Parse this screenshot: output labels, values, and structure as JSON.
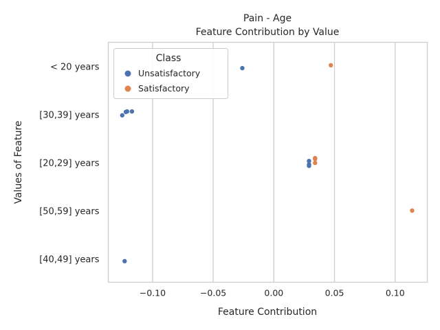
{
  "chart_data": {
    "type": "scatter",
    "title": "Pain - Age",
    "subtitle": "Feature Contribution by Value",
    "xlabel": "Feature Contribution",
    "ylabel": "Values of Feature",
    "xlim": [
      -0.1365,
      0.1265
    ],
    "x_ticks": [
      -0.1,
      -0.05,
      0.0,
      0.05,
      0.1
    ],
    "x_tick_labels": [
      "−0.10",
      "−0.05",
      "0.00",
      "0.05",
      "0.10"
    ],
    "categories": [
      "< 20 years",
      "[30,39] years",
      "[20,29] years",
      "[50,59] years",
      "[40,49] years"
    ],
    "grid": "x-only",
    "legend": {
      "title": "Class",
      "placement": "top-left",
      "entries": [
        {
          "name": "Unsatisfactory",
          "color": "#4c72b0"
        },
        {
          "name": "Satisfactory",
          "color": "#dd8452"
        }
      ]
    },
    "series": [
      {
        "name": "Unsatisfactory",
        "color": "#4c72b0",
        "points": [
          {
            "category": "< 20 years",
            "x": -0.026,
            "offset": 0.03
          },
          {
            "category": "[30,39] years",
            "x": -0.117,
            "offset": -0.07
          },
          {
            "category": "[30,39] years",
            "x": -0.121,
            "offset": -0.07
          },
          {
            "category": "[30,39] years",
            "x": -0.122,
            "offset": -0.06
          },
          {
            "category": "[30,39] years",
            "x": -0.125,
            "offset": 0.01
          },
          {
            "category": "[20,29] years",
            "x": 0.029,
            "offset": -0.04
          },
          {
            "category": "[20,29] years",
            "x": 0.029,
            "offset": 0.03
          },
          {
            "category": "[20,29] years",
            "x": 0.029,
            "offset": 0.06
          },
          {
            "category": "[40,49] years",
            "x": -0.123,
            "offset": 0.04
          }
        ]
      },
      {
        "name": "Satisfactory",
        "color": "#dd8452",
        "points": [
          {
            "category": "< 20 years",
            "x": 0.047,
            "offset": -0.03
          },
          {
            "category": "[20,29] years",
            "x": 0.034,
            "offset": -0.1
          },
          {
            "category": "[20,29] years",
            "x": 0.034,
            "offset": -0.08
          },
          {
            "category": "[20,29] years",
            "x": 0.034,
            "offset": 0.0
          },
          {
            "category": "[50,59] years",
            "x": 0.114,
            "offset": -0.01
          }
        ]
      }
    ]
  }
}
